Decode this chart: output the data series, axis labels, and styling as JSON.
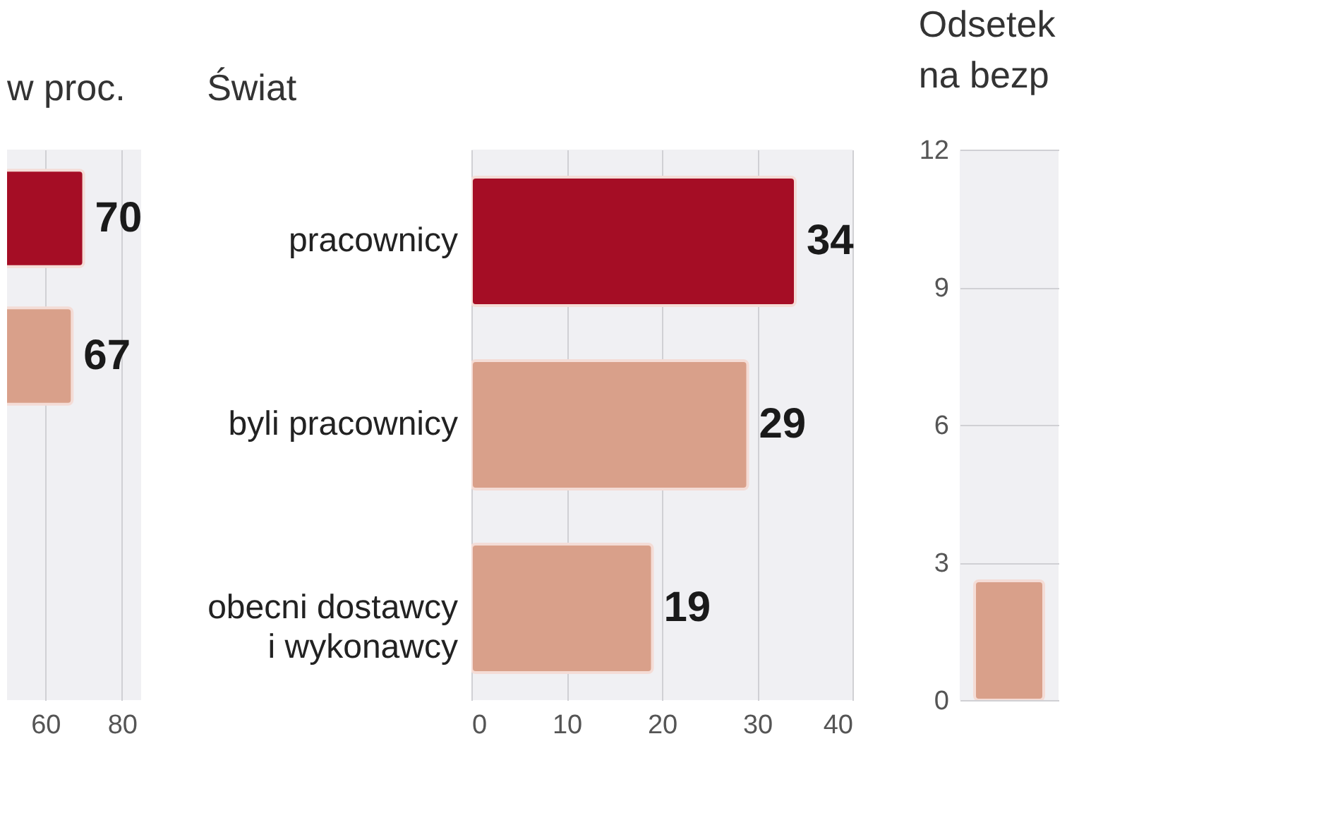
{
  "chart_data": [
    {
      "type": "bar",
      "orientation": "horizontal",
      "title": "w proc.",
      "categories": [
        null,
        null,
        null,
        null
      ],
      "values": [
        70,
        67,
        null,
        null
      ],
      "colors": [
        "#a50d25",
        "#d9a08a",
        "#d9a08a",
        "#d9a08a"
      ],
      "xlim": [
        50,
        85
      ],
      "xticks": [
        60,
        80
      ],
      "grid": "x",
      "data_labels": true
    },
    {
      "type": "bar",
      "orientation": "horizontal",
      "title": "Świat",
      "categories": [
        "pracownicy",
        "byli pracownicy",
        "obecni dostawcy\ni wykonawcy"
      ],
      "values": [
        34,
        29,
        19
      ],
      "colors": [
        "#a50d25",
        "#d9a08a",
        "#d9a08a"
      ],
      "xlim": [
        0,
        40
      ],
      "xticks": [
        0,
        10,
        20,
        30,
        40
      ],
      "grid": "x",
      "data_labels": true
    },
    {
      "type": "bar",
      "title": "Odsetek\nna bezp",
      "categories": [
        null
      ],
      "values": [
        2.6
      ],
      "colors": [
        "#d9a08a"
      ],
      "ylim": [
        0,
        12
      ],
      "yticks": [
        0,
        3,
        6,
        9,
        12
      ],
      "grid": "y"
    }
  ]
}
